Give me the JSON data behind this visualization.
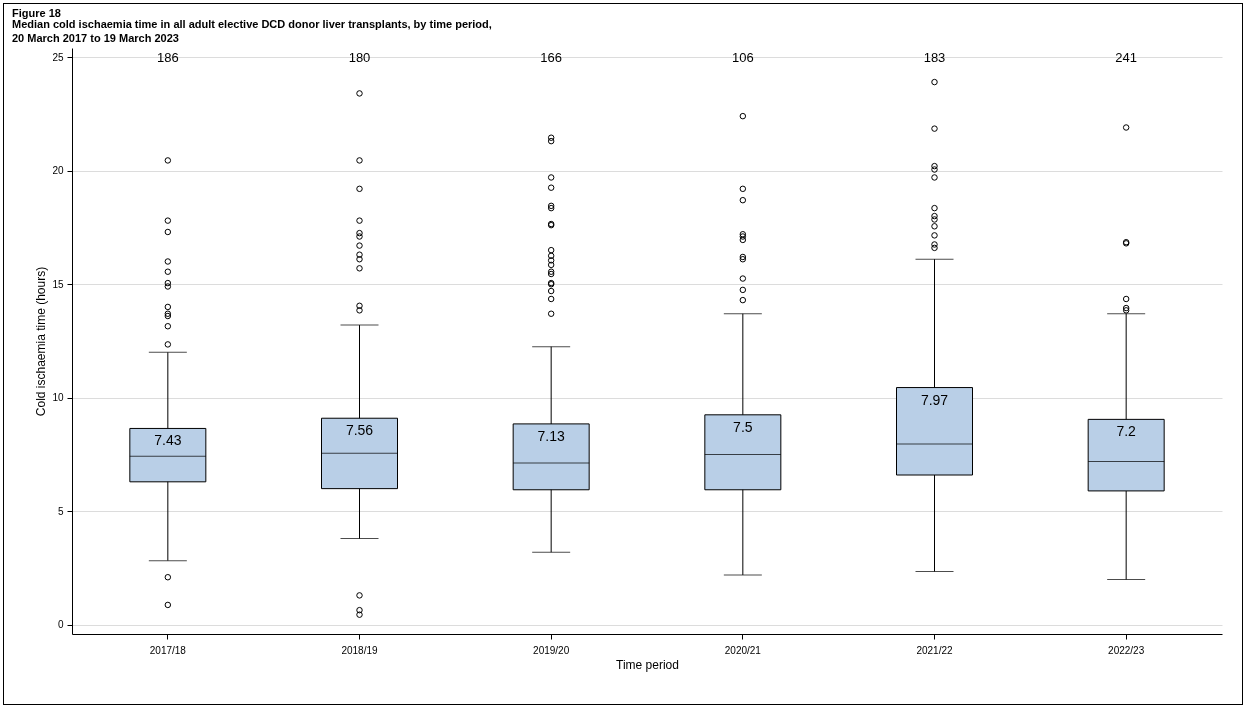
{
  "chart_data": {
    "type": "box",
    "title": "Figure 18",
    "subtitle": "Median cold ischaemia time in all adult elective DCD donor liver transplants, by time period,\n20 March 2017 to 19 March 2023",
    "xlabel": "Time period",
    "ylabel": "Cold ischaemia time (hours)",
    "categories": [
      "2017/18",
      "2018/19",
      "2019/20",
      "2020/21",
      "2021/22",
      "2022/23"
    ],
    "series": [
      {
        "color": "#b9cfe7",
        "value_labels": [
          "7.43",
          "7.56",
          "7.13",
          "7.5",
          "7.97",
          "7.2"
        ],
        "boxes": [
          {
            "low": 2.83,
            "q1": 6.3,
            "median": 7.43,
            "q3": 8.65,
            "high": 12.0,
            "outliers": [
              20.45,
              17.8,
              17.3,
              16.0,
              15.55,
              15.05,
              14.9,
              14.0,
              13.7,
              13.6,
              13.15,
              12.35,
              2.1,
              0.88
            ]
          },
          {
            "low": 3.8,
            "q1": 6.0,
            "median": 7.56,
            "q3": 9.1,
            "high": 13.2,
            "outliers": [
              23.4,
              20.45,
              19.2,
              17.8,
              17.25,
              17.1,
              16.7,
              16.3,
              16.1,
              15.7,
              14.05,
              13.85,
              1.3,
              0.65,
              0.45
            ]
          },
          {
            "low": 3.2,
            "q1": 5.95,
            "median": 7.13,
            "q3": 8.85,
            "high": 12.25,
            "outliers": [
              21.45,
              21.3,
              19.7,
              19.25,
              18.45,
              18.35,
              17.65,
              17.6,
              16.5,
              16.25,
              16.05,
              15.85,
              15.55,
              15.45,
              15.05,
              15.0,
              14.7,
              14.35,
              13.7
            ]
          },
          {
            "low": 2.2,
            "q1": 5.95,
            "median": 7.5,
            "q3": 9.25,
            "high": 13.7,
            "outliers": [
              22.4,
              19.2,
              18.7,
              17.2,
              17.1,
              16.95,
              16.2,
              16.1,
              15.25,
              14.75,
              14.3
            ]
          },
          {
            "low": 2.35,
            "q1": 6.6,
            "median": 7.97,
            "q3": 10.45,
            "high": 16.1,
            "outliers": [
              23.9,
              21.85,
              20.2,
              20.05,
              19.7,
              18.35,
              18.0,
              17.85,
              17.55,
              17.15,
              16.75,
              16.6
            ]
          },
          {
            "low": 2.0,
            "q1": 5.9,
            "median": 7.2,
            "q3": 9.05,
            "high": 13.7,
            "outliers": [
              21.9,
              16.85,
              16.8,
              14.35,
              13.95,
              13.85
            ]
          }
        ]
      }
    ],
    "annotations": [
      "186",
      "180",
      "166",
      "106",
      "183",
      "241"
    ],
    "ylim": [
      -0.4,
      25.4
    ],
    "yticks": [
      0,
      5,
      10,
      15,
      20,
      25
    ],
    "grid": "y",
    "marker": "circle"
  }
}
